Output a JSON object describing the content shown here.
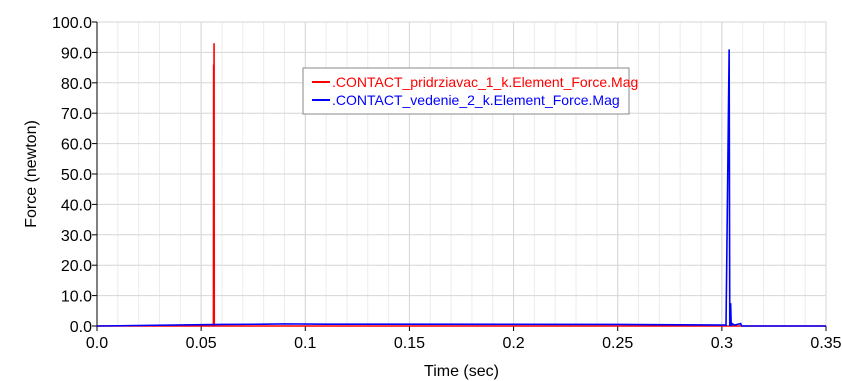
{
  "chart_data": {
    "type": "line",
    "xlabel": "Time (sec)",
    "ylabel": "Force (newton)",
    "xlim": [
      0.0,
      0.35
    ],
    "ylim": [
      0.0,
      100.0
    ],
    "xticks": [
      0.0,
      0.05,
      0.1,
      0.15,
      0.2,
      0.25,
      0.3,
      0.35
    ],
    "xtick_labels": [
      "0.0",
      "0.05",
      "0.1",
      "0.15",
      "0.2",
      "0.25",
      "0.3",
      "0.35"
    ],
    "yticks": [
      0,
      10,
      20,
      30,
      40,
      50,
      60,
      70,
      80,
      90,
      100
    ],
    "ytick_labels": [
      "0.0",
      "10.0",
      "20.0",
      "30.0",
      "40.0",
      "50.0",
      "60.0",
      "70.0",
      "80.0",
      "90.0",
      "100.0"
    ],
    "grid": true,
    "legend_position": "top-center",
    "series": [
      {
        "name": ".CONTACT_pridrziavac_1_k.Element_Force.Mag",
        "color": "#ff0000",
        "x": [
          0.0,
          0.0559,
          0.056,
          0.0561,
          0.0562,
          0.0563,
          0.0564,
          0.0565,
          0.35
        ],
        "y": [
          0.0,
          0.0,
          86.0,
          0.0,
          93.0,
          0.0,
          0.0,
          0.0,
          0.0
        ]
      },
      {
        "name": ".CONTACT_vedenie_2_k.Element_Force.Mag",
        "color": "#0000ff",
        "x": [
          0.0,
          0.06,
          0.08,
          0.09,
          0.11,
          0.12,
          0.25,
          0.302,
          0.3035,
          0.3038,
          0.3042,
          0.3045,
          0.305,
          0.306,
          0.309,
          0.3095,
          0.35
        ],
        "y": [
          0.0,
          0.5,
          0.6,
          0.7,
          0.6,
          0.6,
          0.5,
          0.3,
          91.0,
          0.0,
          7.5,
          0.0,
          0.8,
          0.3,
          0.8,
          0.0,
          0.0
        ]
      }
    ]
  }
}
